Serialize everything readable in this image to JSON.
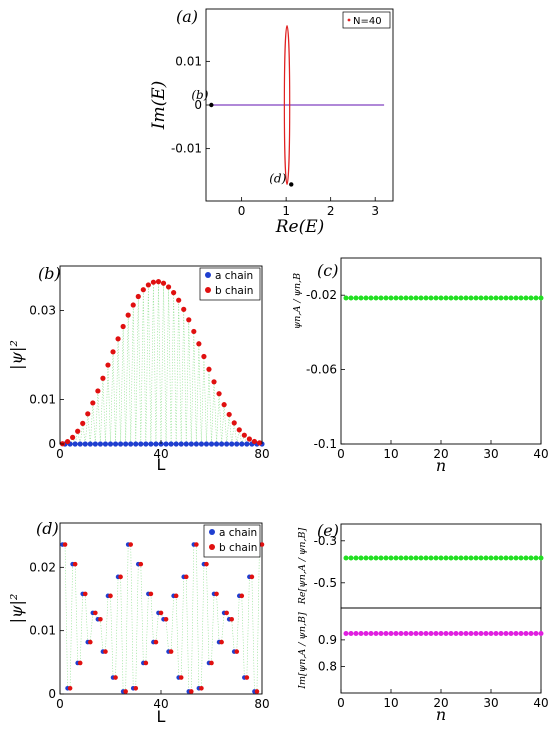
{
  "chart_data": [
    {
      "id": "a",
      "panel_label": "(a)",
      "type": "scatter",
      "xlabel": "Re(E)",
      "ylabel": "Im(E)",
      "xlim": [
        -0.8,
        3.4
      ],
      "ylim": [
        -0.022,
        0.022
      ],
      "xticks": [
        0,
        1,
        2,
        3
      ],
      "xtick_labels": [
        "0",
        "1",
        "2",
        "3"
      ],
      "yticks": [
        0.01,
        0,
        -0.01
      ],
      "ytick_labels": [
        "0.01",
        "0",
        "-0.01"
      ],
      "legend": [
        "N=40"
      ],
      "legend_position": "top-right",
      "series": [
        {
          "name": "N=40",
          "shape": "ellipse",
          "center": [
            1.02,
            0
          ],
          "re_halfwidth": 0.06,
          "im_halfheight": 0.0182,
          "color": "#e02020"
        },
        {
          "shape": "line",
          "x_range": [
            -0.68,
            3.2
          ],
          "y": 0,
          "color": "#8040c0"
        }
      ],
      "annotations": [
        {
          "text": "(b)",
          "x": -0.68,
          "y": 0
        },
        {
          "text": "(d)",
          "x": 0.98,
          "y": -0.0182
        }
      ]
    },
    {
      "id": "b",
      "panel_label": "(b)",
      "type": "scatter",
      "xlabel": "L",
      "ylabel": "|ψ|²",
      "xlim": [
        0,
        80
      ],
      "ylim": [
        0,
        0.04
      ],
      "xticks": [
        0,
        40,
        80
      ],
      "xtick_labels": [
        "0",
        "40",
        "80"
      ],
      "yticks": [
        0,
        0.01,
        0.03
      ],
      "ytick_labels": [
        "0",
        "0.01",
        "0.03"
      ],
      "legend": [
        "a chain",
        "b chain"
      ],
      "legend_position": "top-right",
      "series": [
        {
          "name": "a chain",
          "color": "#1f3fd0",
          "x": [
            2,
            4,
            6,
            8,
            10,
            12,
            14,
            16,
            18,
            20,
            22,
            24,
            26,
            28,
            30,
            32,
            34,
            36,
            38,
            40,
            42,
            44,
            46,
            48,
            50,
            52,
            54,
            56,
            58,
            60,
            62,
            64,
            66,
            68,
            70,
            72,
            74,
            76,
            78,
            80
          ],
          "values": [
            0,
            0,
            0,
            0,
            0,
            0,
            0,
            0,
            0,
            0,
            0,
            0,
            0,
            0,
            0,
            0,
            0,
            0,
            0,
            0,
            0,
            0,
            0,
            0,
            0,
            0,
            0,
            0,
            0,
            0,
            0,
            0,
            0,
            0,
            0,
            0,
            0,
            0,
            0,
            0
          ]
        },
        {
          "name": "b chain",
          "color": "#e01010",
          "x": [
            1,
            3,
            5,
            7,
            9,
            11,
            13,
            15,
            17,
            19,
            21,
            23,
            25,
            27,
            29,
            31,
            33,
            35,
            37,
            39,
            41,
            43,
            45,
            47,
            49,
            51,
            53,
            55,
            57,
            59,
            61,
            63,
            65,
            67,
            69,
            71,
            73,
            75,
            77,
            79
          ],
          "values": [
            6e-05,
            0.00054,
            0.00149,
            0.00286,
            0.00464,
            0.00678,
            0.00923,
            0.01192,
            0.01478,
            0.01774,
            0.02071,
            0.02363,
            0.0264,
            0.02896,
            0.03123,
            0.03315,
            0.03467,
            0.03575,
            0.03636,
            0.03649,
            0.03613,
            0.0353,
            0.03402,
            0.03232,
            0.03026,
            0.0279,
            0.02529,
            0.02252,
            0.01966,
            0.01679,
            0.01398,
            0.01131,
            0.00884,
            0.00664,
            0.00474,
            0.00318,
            0.00198,
            0.00112,
            0.00057,
            0.00025
          ]
        }
      ]
    },
    {
      "id": "c",
      "panel_label": "(c)",
      "type": "scatter",
      "xlabel": "n",
      "ylabel": "ψn,A / ψn,B",
      "xlim": [
        0,
        40
      ],
      "ylim": [
        -0.1,
        0
      ],
      "xticks": [
        0,
        10,
        20,
        30,
        40
      ],
      "xtick_labels": [
        "0",
        "10",
        "20",
        "30",
        "40"
      ],
      "yticks": [
        -0.02,
        -0.06,
        -0.1
      ],
      "ytick_labels": [
        "-0.02",
        "-0.06",
        "-0.1"
      ],
      "series": [
        {
          "color": "#22e022",
          "x_range": [
            1,
            40
          ],
          "value": -0.0215
        }
      ]
    },
    {
      "id": "d",
      "panel_label": "(d)",
      "type": "scatter",
      "xlabel": "L",
      "ylabel": "|ψ|²",
      "xlim": [
        0,
        80
      ],
      "ylim": [
        0,
        0.027
      ],
      "xticks": [
        0,
        40,
        80
      ],
      "xtick_labels": [
        "0",
        "40",
        "80"
      ],
      "yticks": [
        0,
        0.01,
        0.02
      ],
      "ytick_labels": [
        "0",
        "0.01",
        "0.02"
      ],
      "legend": [
        "a chain",
        "b chain"
      ],
      "legend_position": "top-right",
      "series": [
        {
          "name": "a chain",
          "color": "#1f3fd0",
          "x": [
            1,
            3,
            5,
            7,
            9,
            11,
            13,
            15,
            17,
            19,
            21,
            23,
            25,
            27,
            29,
            31,
            33,
            35,
            37,
            39,
            41,
            43,
            45,
            47,
            49,
            51,
            53,
            55,
            57,
            59,
            61,
            63,
            65,
            67,
            69,
            71,
            73,
            75,
            77,
            79
          ],
          "values": [
            0.0236,
            0.0009,
            0.0205,
            0.0049,
            0.0158,
            0.0082,
            0.0128,
            0.0118,
            0.0067,
            0.0155,
            0.0026,
            0.0185,
            0.0004,
            0.0236,
            0.0009,
            0.0205,
            0.0049,
            0.0158,
            0.0082,
            0.0128,
            0.0118,
            0.0067,
            0.0155,
            0.0026,
            0.0185,
            0.0004,
            0.0236,
            0.0009,
            0.0205,
            0.0049,
            0.0158,
            0.0082,
            0.0128,
            0.0118,
            0.0067,
            0.0155,
            0.0026,
            0.0185,
            0.0004,
            0.0236
          ]
        },
        {
          "name": "b chain",
          "color": "#e01010",
          "x": [
            2,
            4,
            6,
            8,
            10,
            12,
            14,
            16,
            18,
            20,
            22,
            24,
            26,
            28,
            30,
            32,
            34,
            36,
            38,
            40,
            42,
            44,
            46,
            48,
            50,
            52,
            54,
            56,
            58,
            60,
            62,
            64,
            66,
            68,
            70,
            72,
            74,
            76,
            78,
            80
          ],
          "values": [
            0.0236,
            0.0009,
            0.0205,
            0.0049,
            0.0158,
            0.0082,
            0.0128,
            0.0118,
            0.0067,
            0.0155,
            0.0026,
            0.0185,
            0.0004,
            0.0236,
            0.0009,
            0.0205,
            0.0049,
            0.0158,
            0.0082,
            0.0128,
            0.0118,
            0.0067,
            0.0155,
            0.0026,
            0.0185,
            0.0004,
            0.0236,
            0.0009,
            0.0205,
            0.0049,
            0.0158,
            0.0082,
            0.0128,
            0.0118,
            0.0067,
            0.0155,
            0.0026,
            0.0185,
            0.0004,
            0.0236
          ]
        }
      ]
    },
    {
      "id": "e1",
      "panel_label": "(e)",
      "type": "scatter",
      "ylabel": "Re[ψn,A / ψn,B]",
      "xlim": [
        0,
        40
      ],
      "ylim": [
        -0.62,
        -0.22
      ],
      "yticks": [
        -0.3,
        -0.5
      ],
      "ytick_labels": [
        "-0.3",
        "-0.5"
      ],
      "series": [
        {
          "color": "#22e022",
          "x_range": [
            1,
            40
          ],
          "value": -0.382
        }
      ]
    },
    {
      "id": "e2",
      "type": "scatter",
      "xlabel": "n",
      "ylabel": "Im[ψn,A / ψn,B]",
      "xlim": [
        0,
        40
      ],
      "ylim": [
        0.7,
        1.02
      ],
      "xticks": [
        0,
        10,
        20,
        30,
        40
      ],
      "xtick_labels": [
        "0",
        "10",
        "20",
        "30",
        "40"
      ],
      "yticks": [
        0.9,
        0.8
      ],
      "ytick_labels": [
        "0.9",
        "0.8"
      ],
      "series": [
        {
          "color": "#e020e0",
          "x_range": [
            1,
            40
          ],
          "value": 0.924
        }
      ]
    }
  ]
}
